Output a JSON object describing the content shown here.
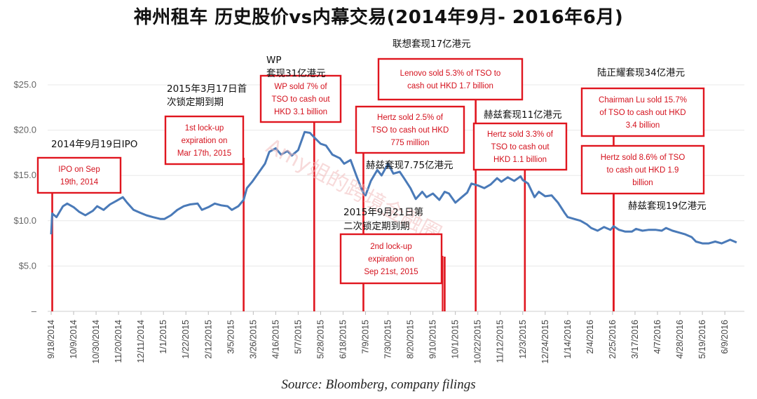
{
  "title": "神州租车 历史股价vs内幕交易(2014年9月- 2016年6月)",
  "source": "Source: Bloomberg, company filings",
  "colors": {
    "line": "#4a7ab8",
    "annotation": "#e0161f",
    "grid": "#e8e8e8"
  },
  "chart_data": {
    "type": "line",
    "title": "神州租车 历史股价vs内幕交易(2014年9月- 2016年6月)",
    "xlabel": "",
    "ylabel": "",
    "ylim": [
      0,
      25
    ],
    "grid": "horizontal",
    "y_ticks": [
      "–",
      "$5.0",
      "$10.0",
      "$15.0",
      "$20.0",
      "$25.0"
    ],
    "x_ticks": [
      "9/18/2014",
      "10/9/2014",
      "10/30/2014",
      "11/20/2014",
      "12/11/2014",
      "1/1/2015",
      "1/22/2015",
      "2/12/2015",
      "3/5/2015",
      "3/26/2015",
      "4/16/2015",
      "5/7/2015",
      "5/28/2015",
      "6/18/2015",
      "7/9/2015",
      "7/30/2015",
      "8/20/2015",
      "9/10/2015",
      "10/1/2015",
      "10/22/2015",
      "11/12/2015",
      "12/3/2015",
      "12/24/2015",
      "1/14/2016",
      "2/4/2016",
      "2/25/2016",
      "3/17/2016",
      "4/7/2016",
      "4/28/2016",
      "5/19/2016",
      "6/9/2016"
    ],
    "series": [
      {
        "points": [
          [
            "2014-09-18",
            8.5
          ],
          [
            "2014-09-19",
            10.8
          ],
          [
            "2014-09-23",
            10.4
          ],
          [
            "2014-09-29",
            11.6
          ],
          [
            "2014-10-03",
            11.9
          ],
          [
            "2014-10-09",
            11.5
          ],
          [
            "2014-10-14",
            11.0
          ],
          [
            "2014-10-20",
            10.6
          ],
          [
            "2014-10-27",
            11.1
          ],
          [
            "2014-10-31",
            11.6
          ],
          [
            "2014-11-06",
            11.2
          ],
          [
            "2014-11-12",
            11.8
          ],
          [
            "2014-11-18",
            12.2
          ],
          [
            "2014-11-24",
            12.6
          ],
          [
            "2014-11-28",
            12.0
          ],
          [
            "2014-12-04",
            11.2
          ],
          [
            "2014-12-10",
            10.9
          ],
          [
            "2014-12-16",
            10.6
          ],
          [
            "2014-12-22",
            10.4
          ],
          [
            "2014-12-29",
            10.2
          ],
          [
            "2015-01-02",
            10.2
          ],
          [
            "2015-01-08",
            10.6
          ],
          [
            "2015-01-14",
            11.2
          ],
          [
            "2015-01-20",
            11.6
          ],
          [
            "2015-01-26",
            11.8
          ],
          [
            "2015-02-02",
            11.9
          ],
          [
            "2015-02-06",
            11.2
          ],
          [
            "2015-02-12",
            11.5
          ],
          [
            "2015-02-18",
            11.9
          ],
          [
            "2015-02-24",
            11.7
          ],
          [
            "2015-03-02",
            11.6
          ],
          [
            "2015-03-06",
            11.2
          ],
          [
            "2015-03-12",
            11.6
          ],
          [
            "2015-03-17",
            12.3
          ],
          [
            "2015-03-20",
            13.6
          ],
          [
            "2015-03-25",
            14.3
          ],
          [
            "2015-03-31",
            15.3
          ],
          [
            "2015-04-06",
            16.3
          ],
          [
            "2015-04-10",
            17.6
          ],
          [
            "2015-04-16",
            18.0
          ],
          [
            "2015-04-21",
            17.3
          ],
          [
            "2015-04-27",
            17.7
          ],
          [
            "2015-05-01",
            17.2
          ],
          [
            "2015-05-07",
            17.8
          ],
          [
            "2015-05-13",
            19.8
          ],
          [
            "2015-05-18",
            19.7
          ],
          [
            "2015-05-22",
            19.2
          ],
          [
            "2015-05-28",
            18.5
          ],
          [
            "2015-06-02",
            18.3
          ],
          [
            "2015-06-08",
            17.3
          ],
          [
            "2015-06-15",
            16.9
          ],
          [
            "2015-06-19",
            16.3
          ],
          [
            "2015-06-25",
            16.7
          ],
          [
            "2015-07-01",
            14.8
          ],
          [
            "2015-07-06",
            13.3
          ],
          [
            "2015-07-09",
            12.8
          ],
          [
            "2015-07-14",
            14.4
          ],
          [
            "2015-07-20",
            15.6
          ],
          [
            "2015-07-24",
            15.0
          ],
          [
            "2015-07-30",
            16.3
          ],
          [
            "2015-08-04",
            15.2
          ],
          [
            "2015-08-10",
            15.4
          ],
          [
            "2015-08-14",
            14.7
          ],
          [
            "2015-08-20",
            13.6
          ],
          [
            "2015-08-25",
            12.4
          ],
          [
            "2015-08-31",
            13.2
          ],
          [
            "2015-09-04",
            12.6
          ],
          [
            "2015-09-10",
            13.0
          ],
          [
            "2015-09-16",
            12.3
          ],
          [
            "2015-09-21",
            13.2
          ],
          [
            "2015-09-25",
            13.0
          ],
          [
            "2015-10-01",
            12.0
          ],
          [
            "2015-10-07",
            12.6
          ],
          [
            "2015-10-12",
            13.1
          ],
          [
            "2015-10-16",
            14.1
          ],
          [
            "2015-10-22",
            13.9
          ],
          [
            "2015-10-28",
            13.6
          ],
          [
            "2015-11-03",
            14.0
          ],
          [
            "2015-11-09",
            14.7
          ],
          [
            "2015-11-13",
            14.3
          ],
          [
            "2015-11-19",
            14.8
          ],
          [
            "2015-11-25",
            14.4
          ],
          [
            "2015-12-01",
            14.9
          ],
          [
            "2015-12-03",
            14.5
          ],
          [
            "2015-12-08",
            14.1
          ],
          [
            "2015-12-14",
            12.6
          ],
          [
            "2015-12-18",
            13.2
          ],
          [
            "2015-12-24",
            12.7
          ],
          [
            "2015-12-30",
            12.8
          ],
          [
            "2016-01-05",
            12.0
          ],
          [
            "2016-01-11",
            10.9
          ],
          [
            "2016-01-14",
            10.4
          ],
          [
            "2016-01-20",
            10.2
          ],
          [
            "2016-01-26",
            10.0
          ],
          [
            "2016-02-01",
            9.6
          ],
          [
            "2016-02-05",
            9.2
          ],
          [
            "2016-02-11",
            8.9
          ],
          [
            "2016-02-17",
            9.3
          ],
          [
            "2016-02-23",
            9.0
          ],
          [
            "2016-02-26",
            9.4
          ],
          [
            "2016-03-02",
            9.0
          ],
          [
            "2016-03-08",
            8.8
          ],
          [
            "2016-03-14",
            8.8
          ],
          [
            "2016-03-18",
            9.1
          ],
          [
            "2016-03-24",
            8.9
          ],
          [
            "2016-03-30",
            9.0
          ],
          [
            "2016-04-05",
            9.0
          ],
          [
            "2016-04-11",
            8.9
          ],
          [
            "2016-04-15",
            9.2
          ],
          [
            "2016-04-21",
            8.9
          ],
          [
            "2016-04-27",
            8.7
          ],
          [
            "2016-05-03",
            8.5
          ],
          [
            "2016-05-09",
            8.2
          ],
          [
            "2016-05-13",
            7.7
          ],
          [
            "2016-05-19",
            7.5
          ],
          [
            "2016-05-25",
            7.5
          ],
          [
            "2016-05-31",
            7.7
          ],
          [
            "2016-06-06",
            7.5
          ],
          [
            "2016-06-10",
            7.7
          ],
          [
            "2016-06-14",
            7.9
          ],
          [
            "2016-06-20",
            7.6
          ]
        ]
      }
    ],
    "annotations": [
      {
        "date": "2014-09-19",
        "label": "2014年9月19日IPO",
        "box": [
          "IPO on Sep",
          "19th, 2014"
        ]
      },
      {
        "date": "2015-03-17",
        "label": "2015年3月17日首 次锁定期到期",
        "box": [
          "1st lock-up",
          "expiration on",
          "Mar 17th, 2015"
        ]
      },
      {
        "date": "2015-05-22",
        "label": "WP 套现31亿港元",
        "box": [
          "WP sold 7% of",
          "TSO to cash out",
          "HKD 3.1 billion"
        ]
      },
      {
        "date": "2015-07-07",
        "label": "赫兹套现7.75亿港元",
        "box": [
          "Hertz sold 2.5% of",
          "TSO to cash out HKD",
          "775 million"
        ]
      },
      {
        "date": "2015-09-21",
        "label": "2015年9月21日第 二次锁定期到期",
        "box": [
          "2nd lock-up",
          "expiration on",
          "Sep 21st, 2015"
        ]
      },
      {
        "date": "2015-10-20",
        "label": "联想套现17亿港元",
        "box": [
          "Lenovo sold 5.3% of TSO to",
          "cash out HKD 1.7 billion"
        ]
      },
      {
        "date": "2015-12-05",
        "label": "赫兹套现11亿港元",
        "box": [
          "Hertz sold 3.3% of",
          "TSO to cash out",
          "HKD 1.1 billion"
        ]
      },
      {
        "date": "2016-02-26",
        "label": "陆正耀套现34亿港元",
        "box": [
          "Chairman Lu sold 15.7%",
          "of TSO to cash out HKD",
          "3.4 billion"
        ]
      },
      {
        "date": "2016-02-26",
        "label": "赫兹套现19亿港元",
        "box": [
          "Hertz sold 8.6% of TSO",
          "to cash out HKD 1.9",
          "billion"
        ]
      }
    ],
    "watermark": "Amy姐的跨境金融圈"
  }
}
